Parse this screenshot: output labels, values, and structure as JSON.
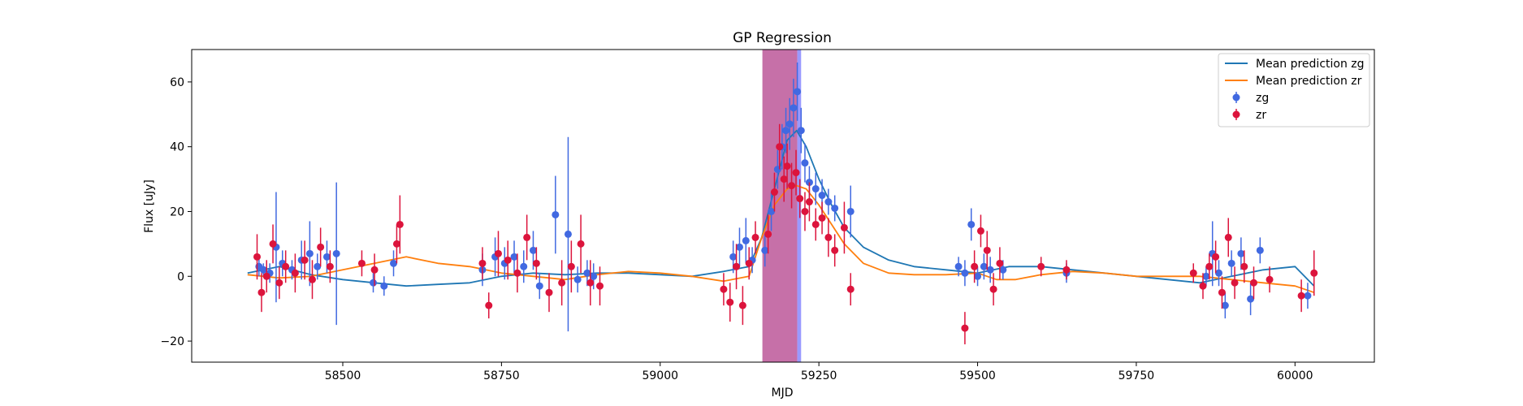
{
  "chart_data": {
    "type": "scatter",
    "title": "GP Regression",
    "xlabel": "MJD",
    "ylabel": "Flux [uJy]",
    "xlim": [
      58262,
      60125
    ],
    "ylim": [
      -26.5,
      70
    ],
    "xticks": [
      58500,
      58750,
      59000,
      59250,
      59500,
      59750,
      60000
    ],
    "yticks": [
      -20,
      0,
      20,
      40,
      60
    ],
    "grid": false,
    "legend_position": "top-right",
    "legend": [
      "Mean prediction zg",
      "Mean prediction zr",
      "zg",
      "zr"
    ],
    "shaded_regions": [
      {
        "x0": 59161,
        "x1": 59216,
        "color": "#c0609f"
      },
      {
        "x0": 59216,
        "x1": 59222,
        "color": "#8f8fff"
      }
    ],
    "colors": {
      "zg_line": "#1f77b4",
      "zr_line": "#ff7f0e",
      "zg_points": "#4169e1",
      "zr_points": "#dc143c"
    },
    "series": [
      {
        "name": "Mean prediction zg",
        "kind": "line",
        "color": "#1f77b4",
        "x": [
          58350,
          58400,
          58450,
          58500,
          58550,
          58600,
          58650,
          58700,
          58750,
          58800,
          58850,
          58900,
          58950,
          59000,
          59050,
          59100,
          59140,
          59160,
          59180,
          59200,
          59215,
          59230,
          59250,
          59270,
          59290,
          59320,
          59360,
          59400,
          59450,
          59500,
          59550,
          59600,
          59650,
          59700,
          59750,
          59800,
          59850,
          59900,
          59950,
          60000,
          60030
        ],
        "y": [
          1,
          3,
          0.5,
          -1,
          -2,
          -3,
          -2.5,
          -2,
          0,
          1,
          0.5,
          1,
          1,
          0.5,
          0,
          1.5,
          3,
          12,
          27,
          42,
          45,
          40,
          30,
          22,
          15,
          9,
          5,
          3,
          2,
          1,
          3,
          3,
          2,
          1,
          0,
          -1,
          -2,
          0,
          2,
          3,
          -3
        ]
      },
      {
        "name": "Mean prediction zr",
        "kind": "line",
        "color": "#ff7f0e",
        "x": [
          58350,
          58400,
          58450,
          58500,
          58550,
          58600,
          58650,
          58700,
          58750,
          58800,
          58850,
          58900,
          58950,
          59000,
          59050,
          59100,
          59140,
          59160,
          59180,
          59200,
          59215,
          59230,
          59250,
          59270,
          59290,
          59320,
          59360,
          59400,
          59450,
          59500,
          59530,
          59560,
          59600,
          59650,
          59700,
          59750,
          59800,
          59850,
          59900,
          59950,
          60000,
          60030
        ],
        "y": [
          0.5,
          -0.5,
          0,
          2,
          4,
          6,
          4,
          3,
          1,
          0,
          -1,
          0.5,
          1.5,
          1,
          0,
          -1.5,
          0,
          12,
          22,
          27,
          28,
          27,
          22,
          16,
          10,
          4,
          1,
          0.5,
          0.5,
          1,
          -1,
          -1,
          0.5,
          1.5,
          1,
          0,
          0,
          0,
          -1,
          -2,
          -3,
          -5
        ]
      },
      {
        "name": "zg",
        "kind": "errorbar",
        "color": "#4169e1",
        "x": [
          58368,
          58375,
          58385,
          58395,
          58405,
          58420,
          58435,
          58448,
          58460,
          58475,
          58490,
          58548,
          58565,
          58580,
          58720,
          58740,
          58755,
          58770,
          58785,
          58800,
          58810,
          58835,
          58855,
          58870,
          58885,
          58895,
          59115,
          59125,
          59135,
          59145,
          59165,
          59175,
          59185,
          59192,
          59198,
          59204,
          59210,
          59216,
          59222,
          59228,
          59235,
          59245,
          59255,
          59265,
          59275,
          59300,
          59470,
          59480,
          59490,
          59500,
          59510,
          59520,
          59540,
          59640,
          59860,
          59870,
          59880,
          59890,
          59900,
          59915,
          59930,
          59945,
          60020
        ],
        "y": [
          3,
          2,
          1,
          9,
          4,
          2,
          5,
          7,
          3,
          6,
          7,
          -2,
          -3,
          4,
          2,
          6,
          4,
          6,
          3,
          8,
          -3,
          19,
          13,
          -1,
          1,
          0,
          6,
          9,
          11,
          5,
          8,
          20,
          33,
          40,
          45,
          47,
          52,
          57,
          45,
          35,
          29,
          27,
          25,
          23,
          21,
          20,
          3,
          1,
          16,
          0,
          3,
          2,
          2,
          1,
          0,
          7,
          1,
          -9,
          4,
          7,
          -7,
          8,
          -6
        ],
        "err": [
          3,
          2,
          3,
          17,
          4,
          3,
          6,
          10,
          4,
          5,
          22,
          3,
          3,
          4,
          5,
          6,
          5,
          5,
          5,
          6,
          4,
          12,
          30,
          4,
          4,
          4,
          5,
          6,
          7,
          4,
          5,
          6,
          6,
          7,
          7,
          8,
          9,
          9,
          7,
          6,
          5,
          5,
          5,
          4,
          4,
          8,
          3,
          4,
          5,
          3,
          4,
          4,
          3,
          3,
          3,
          10,
          4,
          4,
          4,
          5,
          5,
          4,
          4
        ]
      },
      {
        "name": "zr",
        "kind": "errorbar",
        "color": "#dc143c",
        "x": [
          58365,
          58372,
          58380,
          58390,
          58400,
          58410,
          58425,
          58440,
          58452,
          58465,
          58480,
          58530,
          58550,
          58585,
          58590,
          58720,
          58730,
          58745,
          58760,
          58775,
          58790,
          58805,
          58825,
          58845,
          58860,
          58875,
          58890,
          58905,
          59100,
          59110,
          59120,
          59130,
          59140,
          59150,
          59170,
          59180,
          59188,
          59195,
          59200,
          59207,
          59214,
          59220,
          59228,
          59235,
          59245,
          59255,
          59265,
          59275,
          59290,
          59300,
          59480,
          59495,
          59505,
          59515,
          59525,
          59535,
          59600,
          59640,
          59840,
          59855,
          59865,
          59875,
          59885,
          59895,
          59905,
          59920,
          59935,
          59960,
          60010,
          60030
        ],
        "y": [
          6,
          -5,
          0,
          10,
          -2,
          3,
          1,
          5,
          -1,
          9,
          3,
          4,
          2,
          10,
          16,
          4,
          -9,
          7,
          5,
          1,
          12,
          4,
          -5,
          -2,
          3,
          10,
          -2,
          -3,
          -4,
          -8,
          3,
          -9,
          4,
          12,
          13,
          26,
          40,
          30,
          34,
          28,
          32,
          24,
          20,
          23,
          16,
          18,
          12,
          8,
          15,
          -4,
          -16,
          3,
          14,
          8,
          -4,
          4,
          3,
          2,
          1,
          -3,
          3,
          6,
          -5,
          12,
          -2,
          3,
          -2,
          -1,
          -6,
          1
        ],
        "err": [
          7,
          6,
          5,
          6,
          5,
          5,
          6,
          6,
          6,
          6,
          5,
          4,
          5,
          6,
          9,
          5,
          4,
          7,
          6,
          6,
          7,
          5,
          6,
          7,
          8,
          9,
          7,
          6,
          5,
          6,
          7,
          6,
          5,
          5,
          6,
          6,
          7,
          7,
          7,
          7,
          7,
          6,
          6,
          6,
          5,
          5,
          6,
          5,
          8,
          5,
          5,
          5,
          5,
          6,
          5,
          5,
          3,
          3,
          3,
          4,
          4,
          5,
          5,
          6,
          5,
          5,
          5,
          4,
          5,
          7
        ]
      }
    ]
  }
}
